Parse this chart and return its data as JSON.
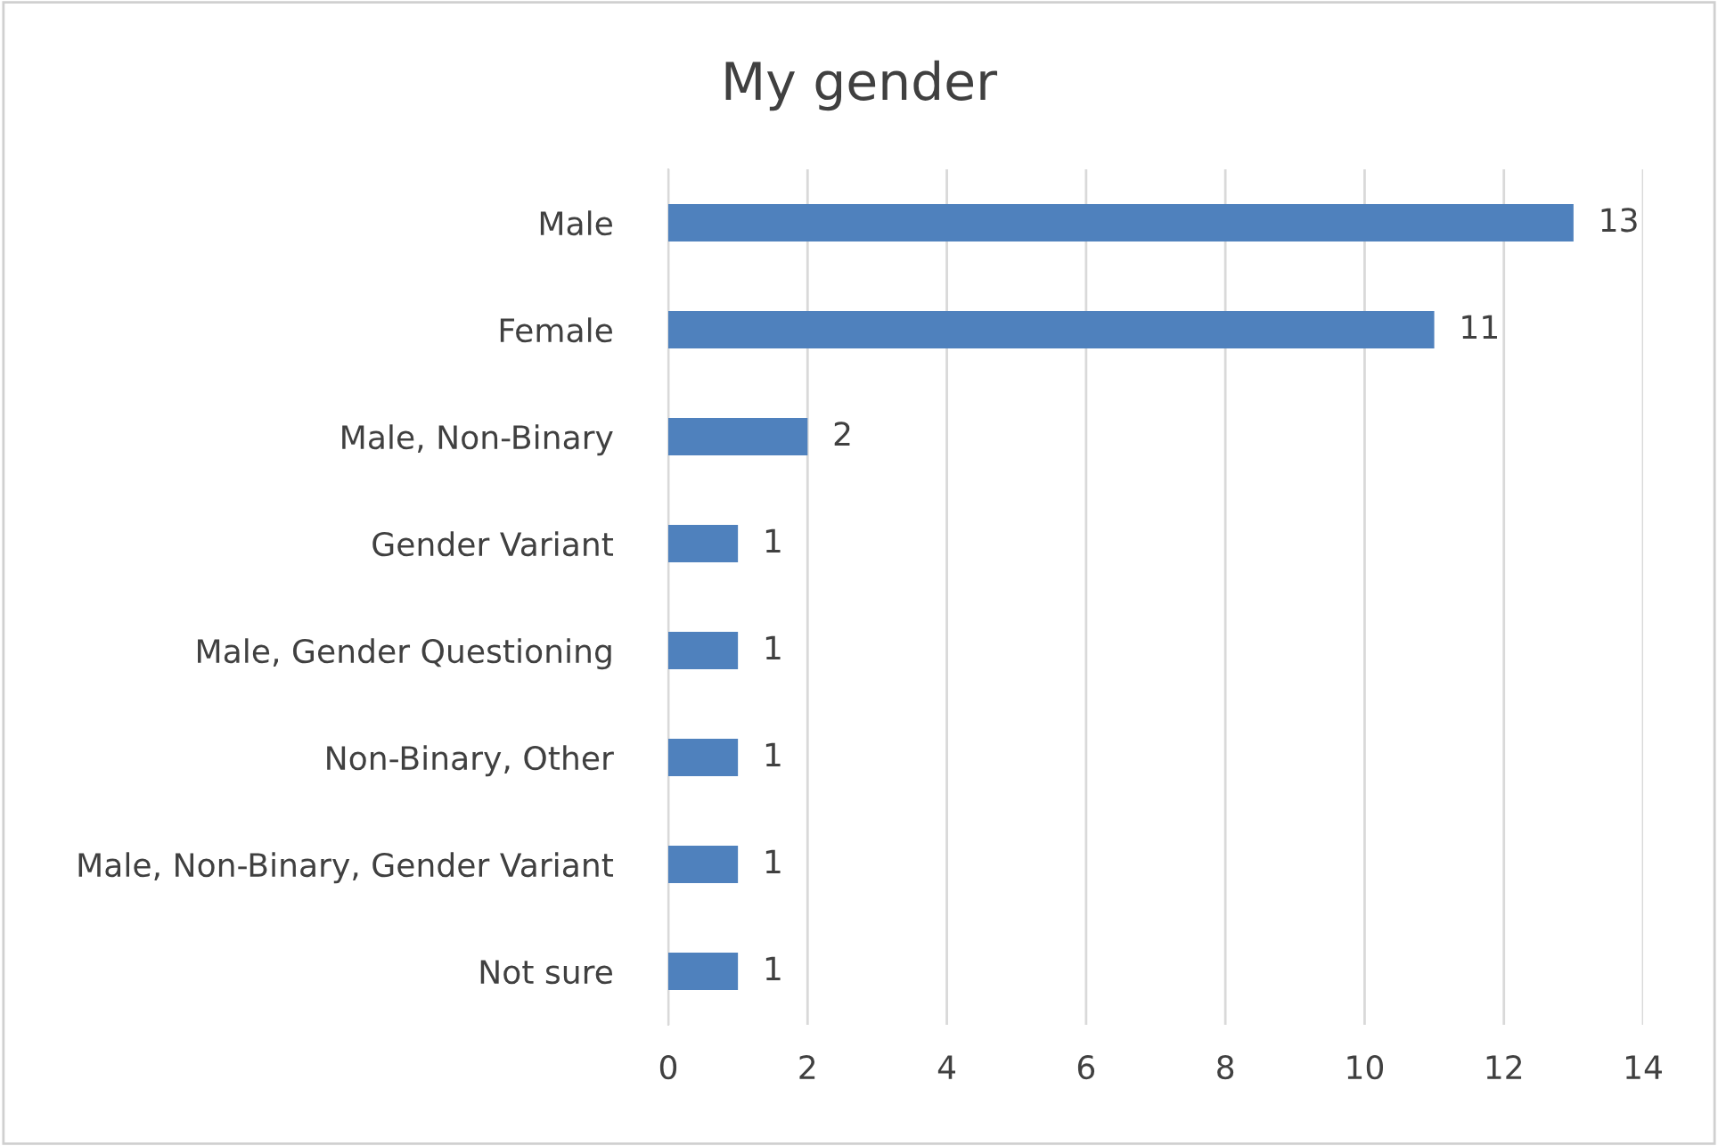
{
  "chart_data": {
    "type": "bar",
    "orientation": "horizontal",
    "title": "My gender",
    "categories": [
      "Male",
      "Female",
      "Male, Non-Binary",
      "Gender Variant",
      "Male, Gender Questioning",
      "Non-Binary, Other",
      "Male, Non-Binary, Gender Variant",
      "Not sure"
    ],
    "values": [
      13,
      11,
      2,
      1,
      1,
      1,
      1,
      1
    ],
    "color": "#4f81bd",
    "xlim": [
      0,
      14
    ],
    "xticks": [
      0,
      2,
      4,
      6,
      8,
      10,
      12,
      14
    ],
    "grid": "x",
    "data_labels": true,
    "legend": false
  }
}
